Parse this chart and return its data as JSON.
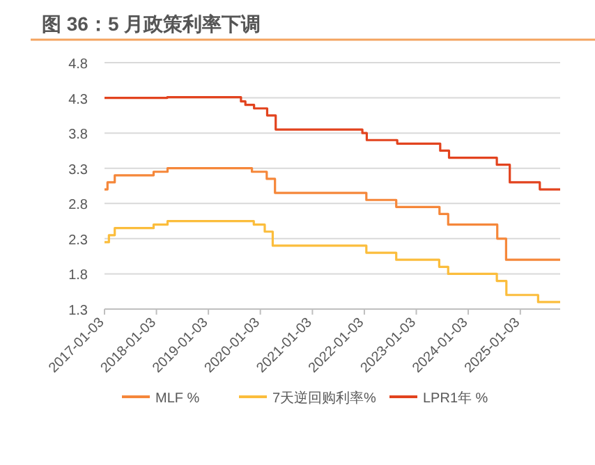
{
  "chart_data": {
    "type": "step",
    "title": "图 36：5 月政策利率下调",
    "xlim": [
      "2017-01-03",
      "2025-10-10"
    ],
    "xticks": [
      "2017-01-03",
      "2018-01-03",
      "2019-01-03",
      "2020-01-03",
      "2021-01-03",
      "2022-01-03",
      "2023-01-03",
      "2024-01-03",
      "2025-01-03"
    ],
    "ylim": [
      1.3,
      4.8
    ],
    "yticks": [
      1.3,
      1.8,
      2.3,
      2.8,
      3.3,
      3.8,
      4.3,
      4.8
    ],
    "grid": "y",
    "legend": "bottom",
    "series": [
      {
        "name": "MLF %",
        "color": "#f5873a",
        "x": [
          "2017-01-03",
          "2017-01-24",
          "2017-03-16",
          "2017-12-14",
          "2018-03-22",
          "2019-11-05",
          "2020-02-17",
          "2020-04-15",
          "2022-01-17",
          "2022-08-15",
          "2023-06-15",
          "2023-08-15",
          "2024-07-25",
          "2024-09-25",
          "2025-10-10"
        ],
        "values": [
          3.0,
          3.1,
          3.2,
          3.25,
          3.3,
          3.25,
          3.15,
          2.95,
          2.85,
          2.75,
          2.65,
          2.5,
          2.3,
          2.0,
          2.0
        ]
      },
      {
        "name": "7天逆回购利率%",
        "color": "#fbbd3c",
        "x": [
          "2017-01-03",
          "2017-02-03",
          "2017-03-16",
          "2017-12-14",
          "2018-03-22",
          "2019-11-18",
          "2020-02-03",
          "2020-03-30",
          "2022-01-17",
          "2022-08-15",
          "2023-06-13",
          "2023-08-15",
          "2024-07-22",
          "2024-09-27",
          "2025-05-08",
          "2025-10-10"
        ],
        "values": [
          2.25,
          2.35,
          2.45,
          2.5,
          2.55,
          2.5,
          2.4,
          2.2,
          2.1,
          2.0,
          1.9,
          1.8,
          1.7,
          1.5,
          1.4,
          1.4
        ]
      },
      {
        "name": "LPR1年 %",
        "color": "#e2431e",
        "x": [
          "2017-01-03",
          "2018-03-20",
          "2019-08-20",
          "2019-09-20",
          "2019-11-20",
          "2020-02-20",
          "2020-04-20",
          "2021-12-20",
          "2022-01-20",
          "2022-08-22",
          "2023-06-20",
          "2023-08-21",
          "2024-07-22",
          "2024-10-21",
          "2025-05-20",
          "2025-10-10"
        ],
        "values": [
          4.3,
          4.31,
          4.25,
          4.2,
          4.15,
          4.05,
          3.85,
          3.8,
          3.7,
          3.65,
          3.55,
          3.45,
          3.35,
          3.1,
          3.0,
          3.0
        ]
      }
    ]
  }
}
